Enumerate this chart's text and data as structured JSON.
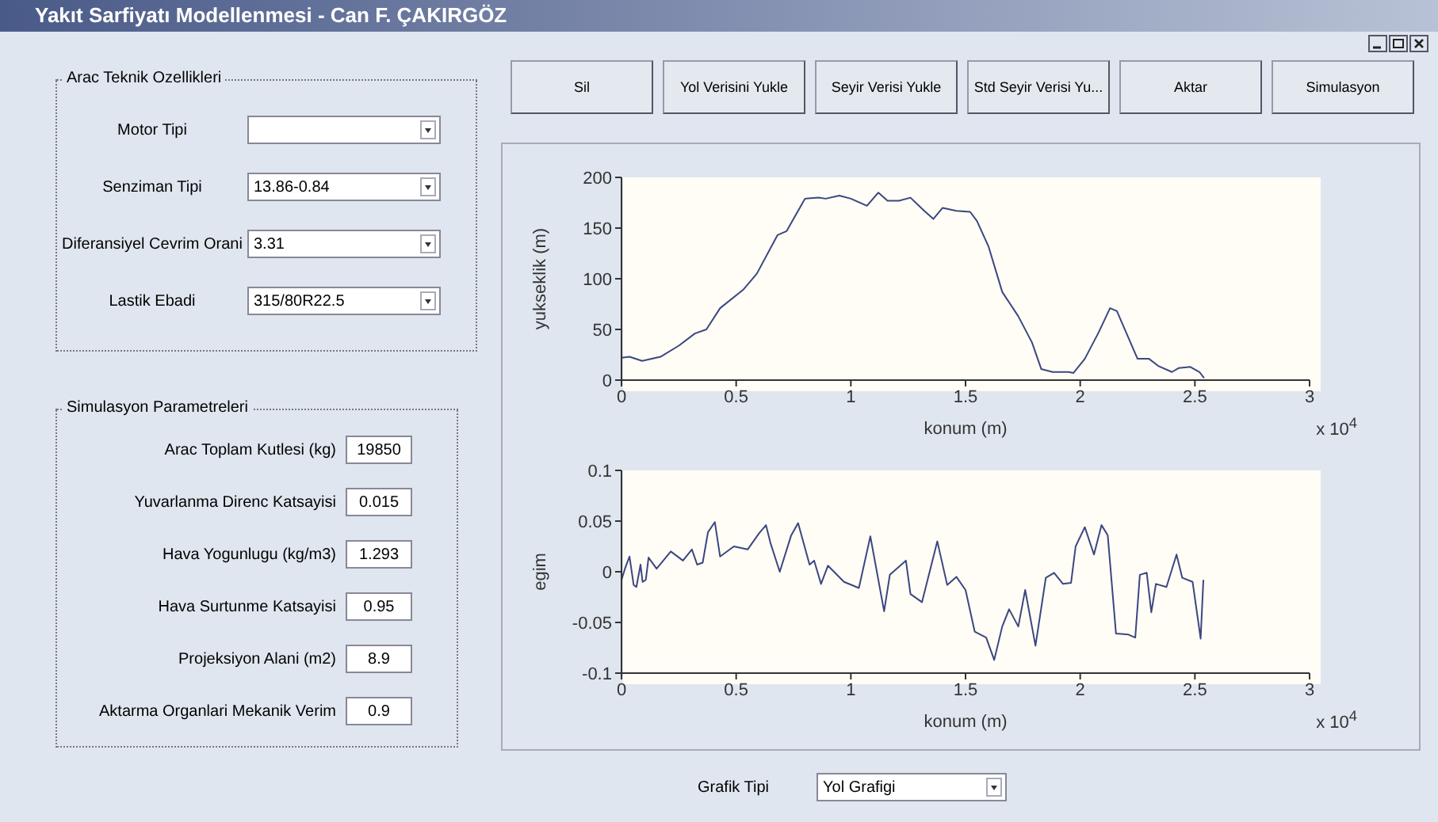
{
  "chart_data": [
    {
      "type": "other",
      "title": "Yakıt Sarfiyatı Modellenmesi - Can F. ÇAKIRGÖZ",
      "annotations": [
        "Arac Teknik Ozellikleri",
        "Motor Tipi",
        "Senziman Tipi",
        "13.86-0.84",
        "Diferansiyel Cevrim Orani",
        "3.31",
        "Lastik Ebadi",
        "315/80R22.5",
        "Simulasyon Parametreleri",
        "Arac Toplam Kutlesi (kg)",
        "19850",
        "Yuvarlanma Direnc Katsayisi",
        "0.015",
        "Hava Yogunlugu (kg/m3)",
        "1.293",
        "Hava Surtunme Katsayisi",
        "0.95",
        "Projeksiyon Alani (m2)",
        "8.9",
        "Aktarma Organlari Mekanik Verim",
        "0.9",
        "Sil",
        "Yol Verisini Yukle",
        "Seyir Verisi Yukle",
        "Std Seyir Verisi Yu...",
        "Aktar",
        "Simulasyon",
        "Grafik Tipi",
        "Yol Grafigi"
      ]
    },
    {
      "type": "line",
      "xlabel": "konum (m)",
      "ylabel": "yukseklik (m)",
      "color": "#3b4780",
      "x": [
        0,
        0.035,
        0.09,
        0.17,
        0.25,
        0.32,
        0.37,
        0.43,
        0.53,
        0.59,
        0.68,
        0.72,
        0.8,
        0.86,
        0.89,
        0.95,
        1.0,
        1.07,
        1.12,
        1.16,
        1.21,
        1.26,
        1.32,
        1.36,
        1.4,
        1.46,
        1.52,
        1.55,
        1.6,
        1.66,
        1.73,
        1.79,
        1.83,
        1.88,
        1.95,
        1.97,
        2.02,
        2.08,
        2.13,
        2.16,
        2.25,
        2.3,
        2.34,
        2.4,
        2.43,
        2.48,
        2.52,
        2.54
      ],
      "values": [
        22,
        23,
        19,
        23,
        34,
        46,
        50,
        71,
        89,
        105,
        143,
        147,
        179,
        180,
        179,
        182,
        179,
        172,
        185,
        177,
        177,
        180,
        167,
        159,
        170,
        167,
        166,
        157,
        132,
        87,
        63,
        37,
        11,
        8,
        8,
        7,
        21,
        47,
        71,
        68,
        21,
        21,
        14,
        8,
        12,
        13,
        8,
        2
      ],
      "xlim": [
        0,
        3
      ],
      "xticks": [
        0,
        0.5,
        1,
        1.5,
        2,
        2.5,
        3
      ],
      "ylim": [
        0,
        200
      ],
      "yticks": [
        0,
        50,
        100,
        150,
        200
      ],
      "annotations": [
        "x 10$^{4}$"
      ]
    },
    {
      "type": "line",
      "xlabel": "konum (m)",
      "ylabel": "egim",
      "color": "#3b4780",
      "x": [
        0,
        0.018,
        0.035,
        0.053,
        0.065,
        0.083,
        0.092,
        0.106,
        0.118,
        0.153,
        0.215,
        0.268,
        0.307,
        0.33,
        0.354,
        0.377,
        0.407,
        0.43,
        0.49,
        0.55,
        0.6,
        0.63,
        0.65,
        0.69,
        0.74,
        0.77,
        0.82,
        0.84,
        0.87,
        0.9,
        0.97,
        1.035,
        1.085,
        1.145,
        1.17,
        1.24,
        1.26,
        1.31,
        1.377,
        1.42,
        1.46,
        1.5,
        1.54,
        1.59,
        1.625,
        1.66,
        1.69,
        1.73,
        1.76,
        1.805,
        1.85,
        1.886,
        1.925,
        1.96,
        1.98,
        2.02,
        2.06,
        2.093,
        2.12,
        2.156,
        2.21,
        2.24,
        2.26,
        2.29,
        2.31,
        2.33,
        2.376,
        2.42,
        2.445,
        2.49,
        2.525,
        2.537
      ],
      "values": [
        -0.008,
        0.005,
        0.015,
        -0.013,
        -0.015,
        0.007,
        -0.01,
        -0.008,
        0.014,
        0.003,
        0.02,
        0.011,
        0.022,
        0.007,
        0.009,
        0.039,
        0.049,
        0.015,
        0.025,
        0.022,
        0.038,
        0.046,
        0.028,
        0.0,
        0.036,
        0.048,
        0.007,
        0.011,
        -0.012,
        0.006,
        -0.01,
        -0.016,
        0.035,
        -0.039,
        -0.003,
        0.011,
        -0.022,
        -0.03,
        0.03,
        -0.013,
        -0.005,
        -0.018,
        -0.059,
        -0.065,
        -0.087,
        -0.054,
        -0.037,
        -0.054,
        -0.018,
        -0.073,
        -0.006,
        -0.001,
        -0.012,
        -0.011,
        0.025,
        0.044,
        0.017,
        0.046,
        0.036,
        -0.061,
        -0.062,
        -0.065,
        -0.003,
        -0.001,
        -0.04,
        -0.012,
        -0.015,
        0.017,
        -0.006,
        -0.01,
        -0.066,
        -0.008
      ],
      "xlim": [
        0,
        3
      ],
      "xticks": [
        0,
        0.5,
        1,
        1.5,
        2,
        2.5,
        3
      ],
      "ylim": [
        -0.1,
        0.1
      ],
      "yticks": [
        -0.1,
        -0.05,
        0,
        0.05,
        0.1
      ],
      "annotations": [
        "x 10$^{4}$"
      ]
    }
  ]
}
